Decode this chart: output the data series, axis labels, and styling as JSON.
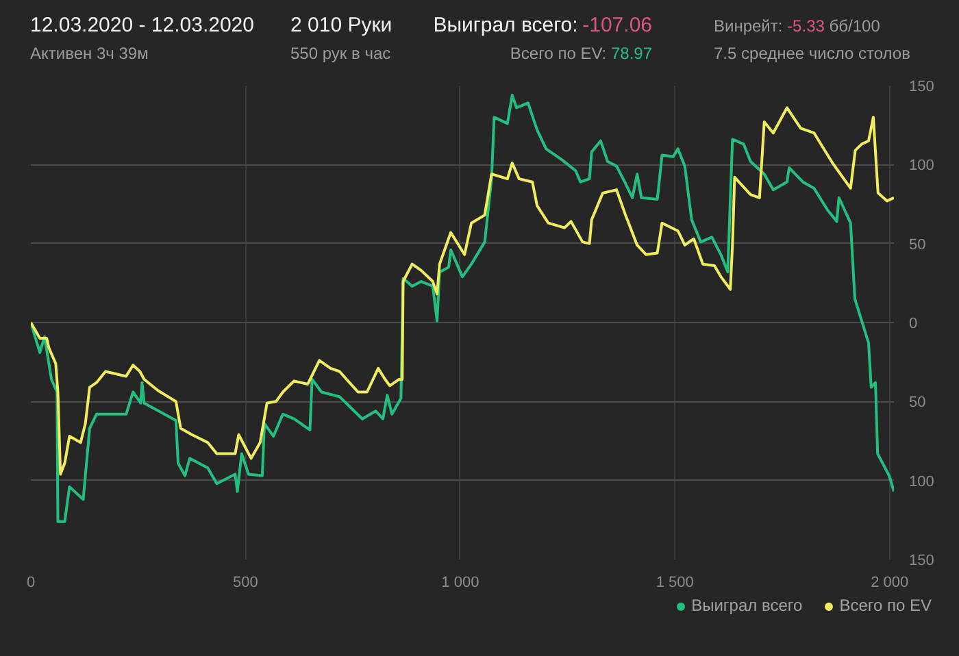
{
  "chart_data": {
    "type": "line",
    "title": "12.03.2020 - 12.03.2020",
    "subtitle": "Активен 3ч 39м",
    "annotations": [
      "2 010 Руки",
      "550 рук в час",
      "Выиграл всего:",
      "-107.06",
      "Всего по EV:",
      "78.97",
      "Винрейт:",
      "-5.33",
      "бб/100",
      "7.5 среднее число столов"
    ],
    "xlim": [
      0,
      2010
    ],
    "ylim": [
      -150,
      150
    ],
    "xticks": [
      0,
      500,
      {
        "value": 1000,
        "label": "1 000"
      },
      {
        "value": 1500,
        "label": "1 500"
      },
      {
        "value": 2000,
        "label": "2 000"
      }
    ],
    "yticks": [
      {
        "value": -150,
        "label": "150"
      },
      {
        "value": -100,
        "label": "100"
      },
      {
        "value": -50,
        "label": "50"
      },
      0,
      50,
      100,
      150
    ],
    "grid": true,
    "legend": "bottom right",
    "line_style": "solid",
    "marker": "none",
    "series": [
      {
        "name": "Выиграл всего",
        "color": "#22c07e",
        "x": [
          0,
          21,
          32,
          48,
          61,
          63,
          79,
          90,
          122,
          137,
          153,
          190,
          222,
          238,
          256,
          259,
          264,
          338,
          343,
          359,
          370,
          412,
          433,
          476,
          481,
          491,
          507,
          539,
          544,
          565,
          587,
          613,
          650,
          655,
          677,
          719,
          772,
          803,
          820,
          830,
          841,
          862,
          867,
          888,
          909,
          936,
          946,
          952,
          973,
          978,
          1005,
          1026,
          1057,
          1073,
          1079,
          1110,
          1121,
          1131,
          1158,
          1179,
          1200,
          1237,
          1269,
          1280,
          1301,
          1306,
          1327,
          1343,
          1364,
          1385,
          1401,
          1412,
          1422,
          1459,
          1470,
          1496,
          1507,
          1523,
          1539,
          1560,
          1586,
          1607,
          1623,
          1634,
          1660,
          1676,
          1708,
          1729,
          1761,
          1766,
          1798,
          1824,
          1856,
          1877,
          1882,
          1909,
          1919,
          1935,
          1951,
          1957,
          1967,
          1972,
          1999,
          2010
        ],
        "values": [
          0,
          -19,
          -9,
          -36,
          -44,
          -126,
          -126,
          -104,
          -112,
          -67,
          -58,
          -58,
          -58,
          -44,
          -51,
          -38,
          -51,
          -62,
          -89,
          -97,
          -86,
          -92,
          -102,
          -96,
          -107,
          -83,
          -96,
          -97,
          -64,
          -72,
          -58,
          -61,
          -68,
          -36,
          -44,
          -47,
          -61,
          -56,
          -61,
          -46,
          -58,
          -48,
          28,
          23,
          26,
          23,
          1,
          32,
          35,
          46,
          29,
          37,
          51,
          91,
          130,
          126,
          144,
          136,
          139,
          122,
          110,
          103,
          96,
          89,
          91,
          108,
          115,
          102,
          99,
          88,
          79,
          94,
          79,
          78,
          106,
          105,
          110,
          99,
          65,
          51,
          54,
          43,
          32,
          116,
          113,
          102,
          94,
          84,
          89,
          98,
          89,
          85,
          71,
          64,
          79,
          63,
          15,
          1,
          -13,
          -41,
          -38,
          -83,
          -97,
          -107
        ]
      },
      {
        "name": "Всего по EV",
        "color": "#f2ec5c",
        "x": [
          0,
          21,
          37,
          42,
          58,
          63,
          69,
          79,
          90,
          116,
          127,
          137,
          153,
          174,
          222,
          238,
          254,
          264,
          296,
          338,
          349,
          375,
          412,
          433,
          476,
          484,
          513,
          534,
          550,
          571,
          587,
          613,
          645,
          672,
          698,
          719,
          762,
          783,
          809,
          825,
          836,
          857,
          865,
          867,
          888,
          909,
          936,
          946,
          952,
          978,
          1010,
          1026,
          1057,
          1073,
          1110,
          1121,
          1137,
          1168,
          1179,
          1205,
          1243,
          1258,
          1285,
          1301,
          1306,
          1332,
          1364,
          1385,
          1412,
          1433,
          1459,
          1470,
          1507,
          1523,
          1544,
          1565,
          1592,
          1607,
          1629,
          1634,
          1639,
          1676,
          1697,
          1708,
          1729,
          1761,
          1793,
          1824,
          1867,
          1909,
          1920,
          1935,
          1951,
          1962,
          1973,
          1994,
          2010
        ],
        "values": [
          0,
          -10,
          -10,
          -16,
          -26,
          -44,
          -96,
          -89,
          -72,
          -76,
          -64,
          -41,
          -38,
          -31,
          -34,
          -27,
          -31,
          -36,
          -43,
          -50,
          -67,
          -71,
          -76,
          -83,
          -83,
          -71,
          -86,
          -76,
          -51,
          -50,
          -44,
          -37,
          -39,
          -24,
          -29,
          -31,
          -44,
          -44,
          -29,
          -36,
          -40,
          -36,
          -36,
          26,
          37,
          33,
          26,
          18,
          37,
          57,
          43,
          63,
          68,
          94,
          91,
          101,
          91,
          89,
          74,
          63,
          60,
          64,
          51,
          50,
          65,
          82,
          84,
          68,
          49,
          43,
          44,
          63,
          58,
          49,
          53,
          37,
          36,
          29,
          21,
          49,
          92,
          81,
          79,
          127,
          120,
          136,
          123,
          120,
          101,
          85,
          109,
          113,
          115,
          130,
          82,
          77,
          79
        ]
      }
    ]
  }
}
